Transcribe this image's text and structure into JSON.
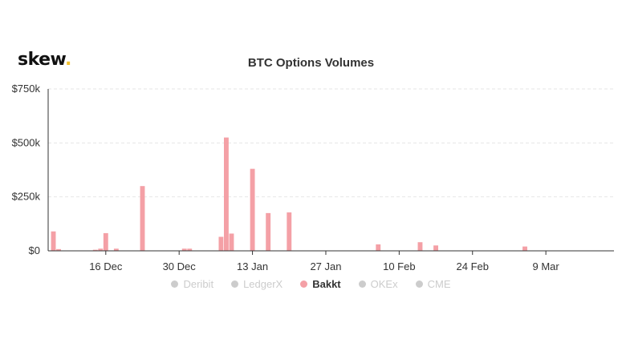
{
  "brand": {
    "name": "skew",
    "dot": "."
  },
  "chart_data": {
    "type": "bar",
    "title": "BTC Options Volumes",
    "xlabel": "",
    "ylabel": "",
    "ylim": [
      0,
      750000
    ],
    "y_ticks": [
      {
        "value": 0,
        "label": "$0"
      },
      {
        "value": 250000,
        "label": "$250k"
      },
      {
        "value": 500000,
        "label": "$500k"
      },
      {
        "value": 750000,
        "label": "$750k"
      }
    ],
    "x_start": "2019-12-05",
    "x_end": "2020-03-22",
    "x_ticks": [
      {
        "date": "2019-12-16",
        "label": "16 Dec"
      },
      {
        "date": "2019-12-30",
        "label": "30 Dec"
      },
      {
        "date": "2020-01-13",
        "label": "13 Jan"
      },
      {
        "date": "2020-01-27",
        "label": "27 Jan"
      },
      {
        "date": "2020-02-10",
        "label": "10 Feb"
      },
      {
        "date": "2020-02-24",
        "label": "24 Feb"
      },
      {
        "date": "2020-03-09",
        "label": "9 Mar"
      }
    ],
    "grid": true,
    "legend_placement": "bottom",
    "series": [
      {
        "name": "Bakkt",
        "color": "#f4a0a6",
        "points": [
          {
            "x": "2019-12-06",
            "y": 90000
          },
          {
            "x": "2019-12-07",
            "y": 8000
          },
          {
            "x": "2019-12-14",
            "y": 5000
          },
          {
            "x": "2019-12-15",
            "y": 10000
          },
          {
            "x": "2019-12-16",
            "y": 82000
          },
          {
            "x": "2019-12-18",
            "y": 10000
          },
          {
            "x": "2019-12-23",
            "y": 300000
          },
          {
            "x": "2019-12-31",
            "y": 10000
          },
          {
            "x": "2020-01-01",
            "y": 10000
          },
          {
            "x": "2020-01-07",
            "y": 65000
          },
          {
            "x": "2020-01-08",
            "y": 525000
          },
          {
            "x": "2020-01-09",
            "y": 80000
          },
          {
            "x": "2020-01-13",
            "y": 380000
          },
          {
            "x": "2020-01-16",
            "y": 175000
          },
          {
            "x": "2020-01-20",
            "y": 178000
          },
          {
            "x": "2020-02-06",
            "y": 30000
          },
          {
            "x": "2020-02-14",
            "y": 40000
          },
          {
            "x": "2020-02-17",
            "y": 25000
          },
          {
            "x": "2020-03-05",
            "y": 20000
          }
        ]
      }
    ],
    "legend": [
      {
        "name": "Deribit",
        "active": false
      },
      {
        "name": "LedgerX",
        "active": false
      },
      {
        "name": "Bakkt",
        "active": true,
        "color": "#f4a0a6"
      },
      {
        "name": "OKEx",
        "active": false
      },
      {
        "name": "CME",
        "active": false
      }
    ]
  }
}
